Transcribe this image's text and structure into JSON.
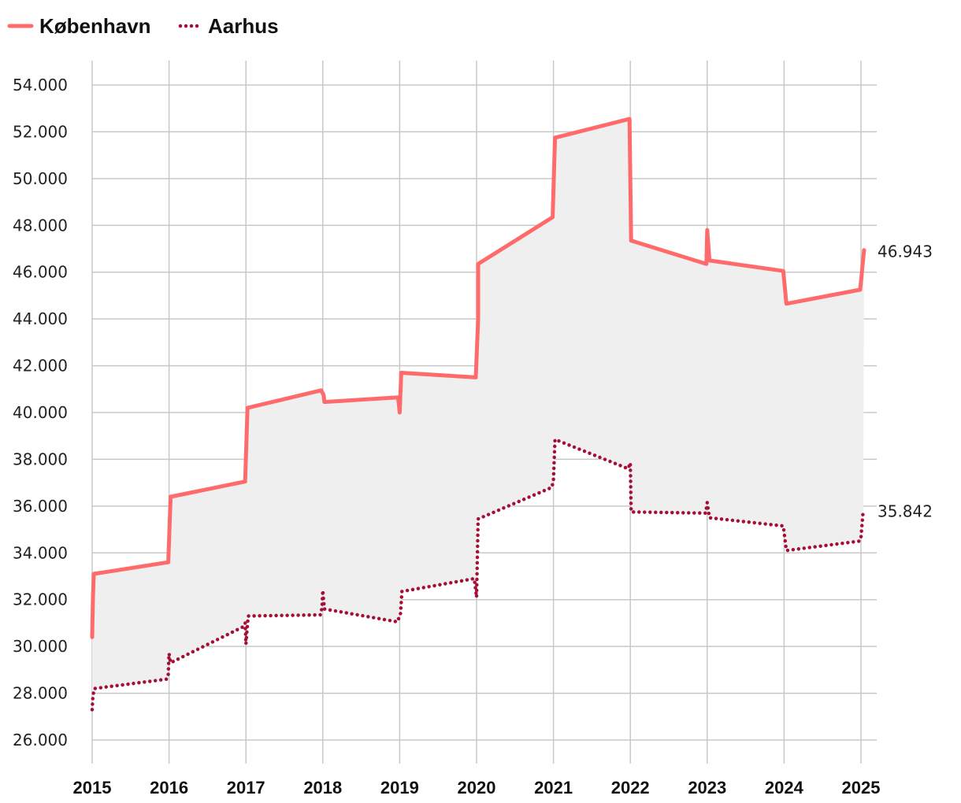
{
  "chart_data": {
    "type": "line",
    "title": "",
    "xlabel": "",
    "ylabel": "",
    "legend_position": "top-left",
    "grid": true,
    "xlim": [
      2015,
      2025
    ],
    "ylim": [
      25000,
      54000
    ],
    "x_ticks": [
      "2015",
      "2016",
      "2017",
      "2018",
      "2019",
      "2020",
      "2021",
      "2022",
      "2023",
      "2024",
      "2025"
    ],
    "y_ticks": [
      {
        "value": 26000,
        "label": "26.000"
      },
      {
        "value": 28000,
        "label": "28.000"
      },
      {
        "value": 30000,
        "label": "30.000"
      },
      {
        "value": 32000,
        "label": "32.000"
      },
      {
        "value": 34000,
        "label": "34.000"
      },
      {
        "value": 36000,
        "label": "36.000"
      },
      {
        "value": 38000,
        "label": "38.000"
      },
      {
        "value": 40000,
        "label": "40.000"
      },
      {
        "value": 42000,
        "label": "42.000"
      },
      {
        "value": 44000,
        "label": "44.000"
      },
      {
        "value": 46000,
        "label": "46.000"
      },
      {
        "value": 48000,
        "label": "48.000"
      },
      {
        "value": 50000,
        "label": "50.000"
      },
      {
        "value": 52000,
        "label": "52.000"
      },
      {
        "value": 54000,
        "label": "54.000"
      }
    ],
    "band_fill": "#efefef",
    "series": [
      {
        "name": "København",
        "color": "#ff6b6b",
        "style": "solid",
        "end_label": "46.943",
        "points": [
          [
            2015.0,
            30400
          ],
          [
            2015.01,
            32100
          ],
          [
            2015.02,
            33100
          ],
          [
            2015.99,
            33600
          ],
          [
            2016.02,
            36400
          ],
          [
            2016.99,
            37050
          ],
          [
            2017.02,
            40200
          ],
          [
            2017.98,
            40950
          ],
          [
            2018.01,
            40750
          ],
          [
            2018.02,
            40450
          ],
          [
            2018.98,
            40650
          ],
          [
            2019.0,
            40000
          ],
          [
            2019.02,
            41700
          ],
          [
            2019.99,
            41500
          ],
          [
            2020.02,
            44000
          ],
          [
            2020.02,
            46350
          ],
          [
            2020.99,
            48350
          ],
          [
            2021.02,
            51750
          ],
          [
            2021.99,
            52550
          ],
          [
            2022.01,
            47350
          ],
          [
            2022.99,
            46350
          ],
          [
            2023.0,
            47800
          ],
          [
            2023.03,
            46500
          ],
          [
            2023.99,
            46050
          ],
          [
            2024.03,
            44650
          ],
          [
            2024.99,
            45250
          ],
          [
            2025.04,
            46943
          ]
        ]
      },
      {
        "name": "Aarhus",
        "color": "#a50f35",
        "style": "dotted",
        "end_label": "35.842",
        "points": [
          [
            2015.0,
            27300
          ],
          [
            2015.01,
            27900
          ],
          [
            2015.03,
            28200
          ],
          [
            2015.97,
            28600
          ],
          [
            2015.99,
            28800
          ],
          [
            2016.0,
            29700
          ],
          [
            2016.02,
            29300
          ],
          [
            2016.97,
            30850
          ],
          [
            2016.99,
            31000
          ],
          [
            2017.0,
            30100
          ],
          [
            2017.03,
            31300
          ],
          [
            2017.97,
            31350
          ],
          [
            2017.99,
            31650
          ],
          [
            2018.0,
            32400
          ],
          [
            2018.02,
            31600
          ],
          [
            2018.97,
            31050
          ],
          [
            2019.01,
            31400
          ],
          [
            2019.03,
            32350
          ],
          [
            2019.97,
            32900
          ],
          [
            2020.0,
            32100
          ],
          [
            2020.02,
            35450
          ],
          [
            2020.98,
            36800
          ],
          [
            2021.0,
            37100
          ],
          [
            2021.02,
            38850
          ],
          [
            2021.97,
            37600
          ],
          [
            2022.0,
            37850
          ],
          [
            2022.01,
            35750
          ],
          [
            2022.98,
            35700
          ],
          [
            2023.0,
            36150
          ],
          [
            2023.03,
            35500
          ],
          [
            2023.99,
            35150
          ],
          [
            2024.03,
            34100
          ],
          [
            2024.98,
            34500
          ],
          [
            2025.0,
            34650
          ],
          [
            2025.03,
            35842
          ]
        ]
      }
    ]
  }
}
